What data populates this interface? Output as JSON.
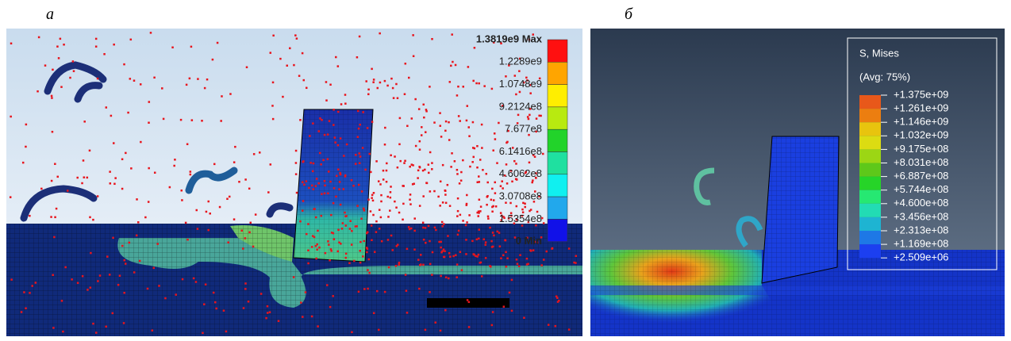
{
  "panel_a": {
    "label": "а",
    "legend": {
      "labels": [
        "1.3819e9 Max",
        "1.2289e9",
        "1.0748e9",
        "9.2124e8",
        "7.677e8",
        "6.1416e8",
        "4.6062e8",
        "3.0708e8",
        "1.5354e8",
        "0 Min"
      ]
    }
  },
  "panel_b": {
    "label": "б",
    "legend": {
      "title": "S, Mises",
      "subtitle": "(Avg: 75%)",
      "labels": [
        "+1.375e+09",
        "+1.261e+09",
        "+1.146e+09",
        "+1.032e+09",
        "+9.175e+08",
        "+8.031e+08",
        "+6.887e+08",
        "+5.744e+08",
        "+4.600e+08",
        "+3.456e+08",
        "+2.313e+08",
        "+1.169e+08",
        "+2.509e+06"
      ]
    }
  }
}
